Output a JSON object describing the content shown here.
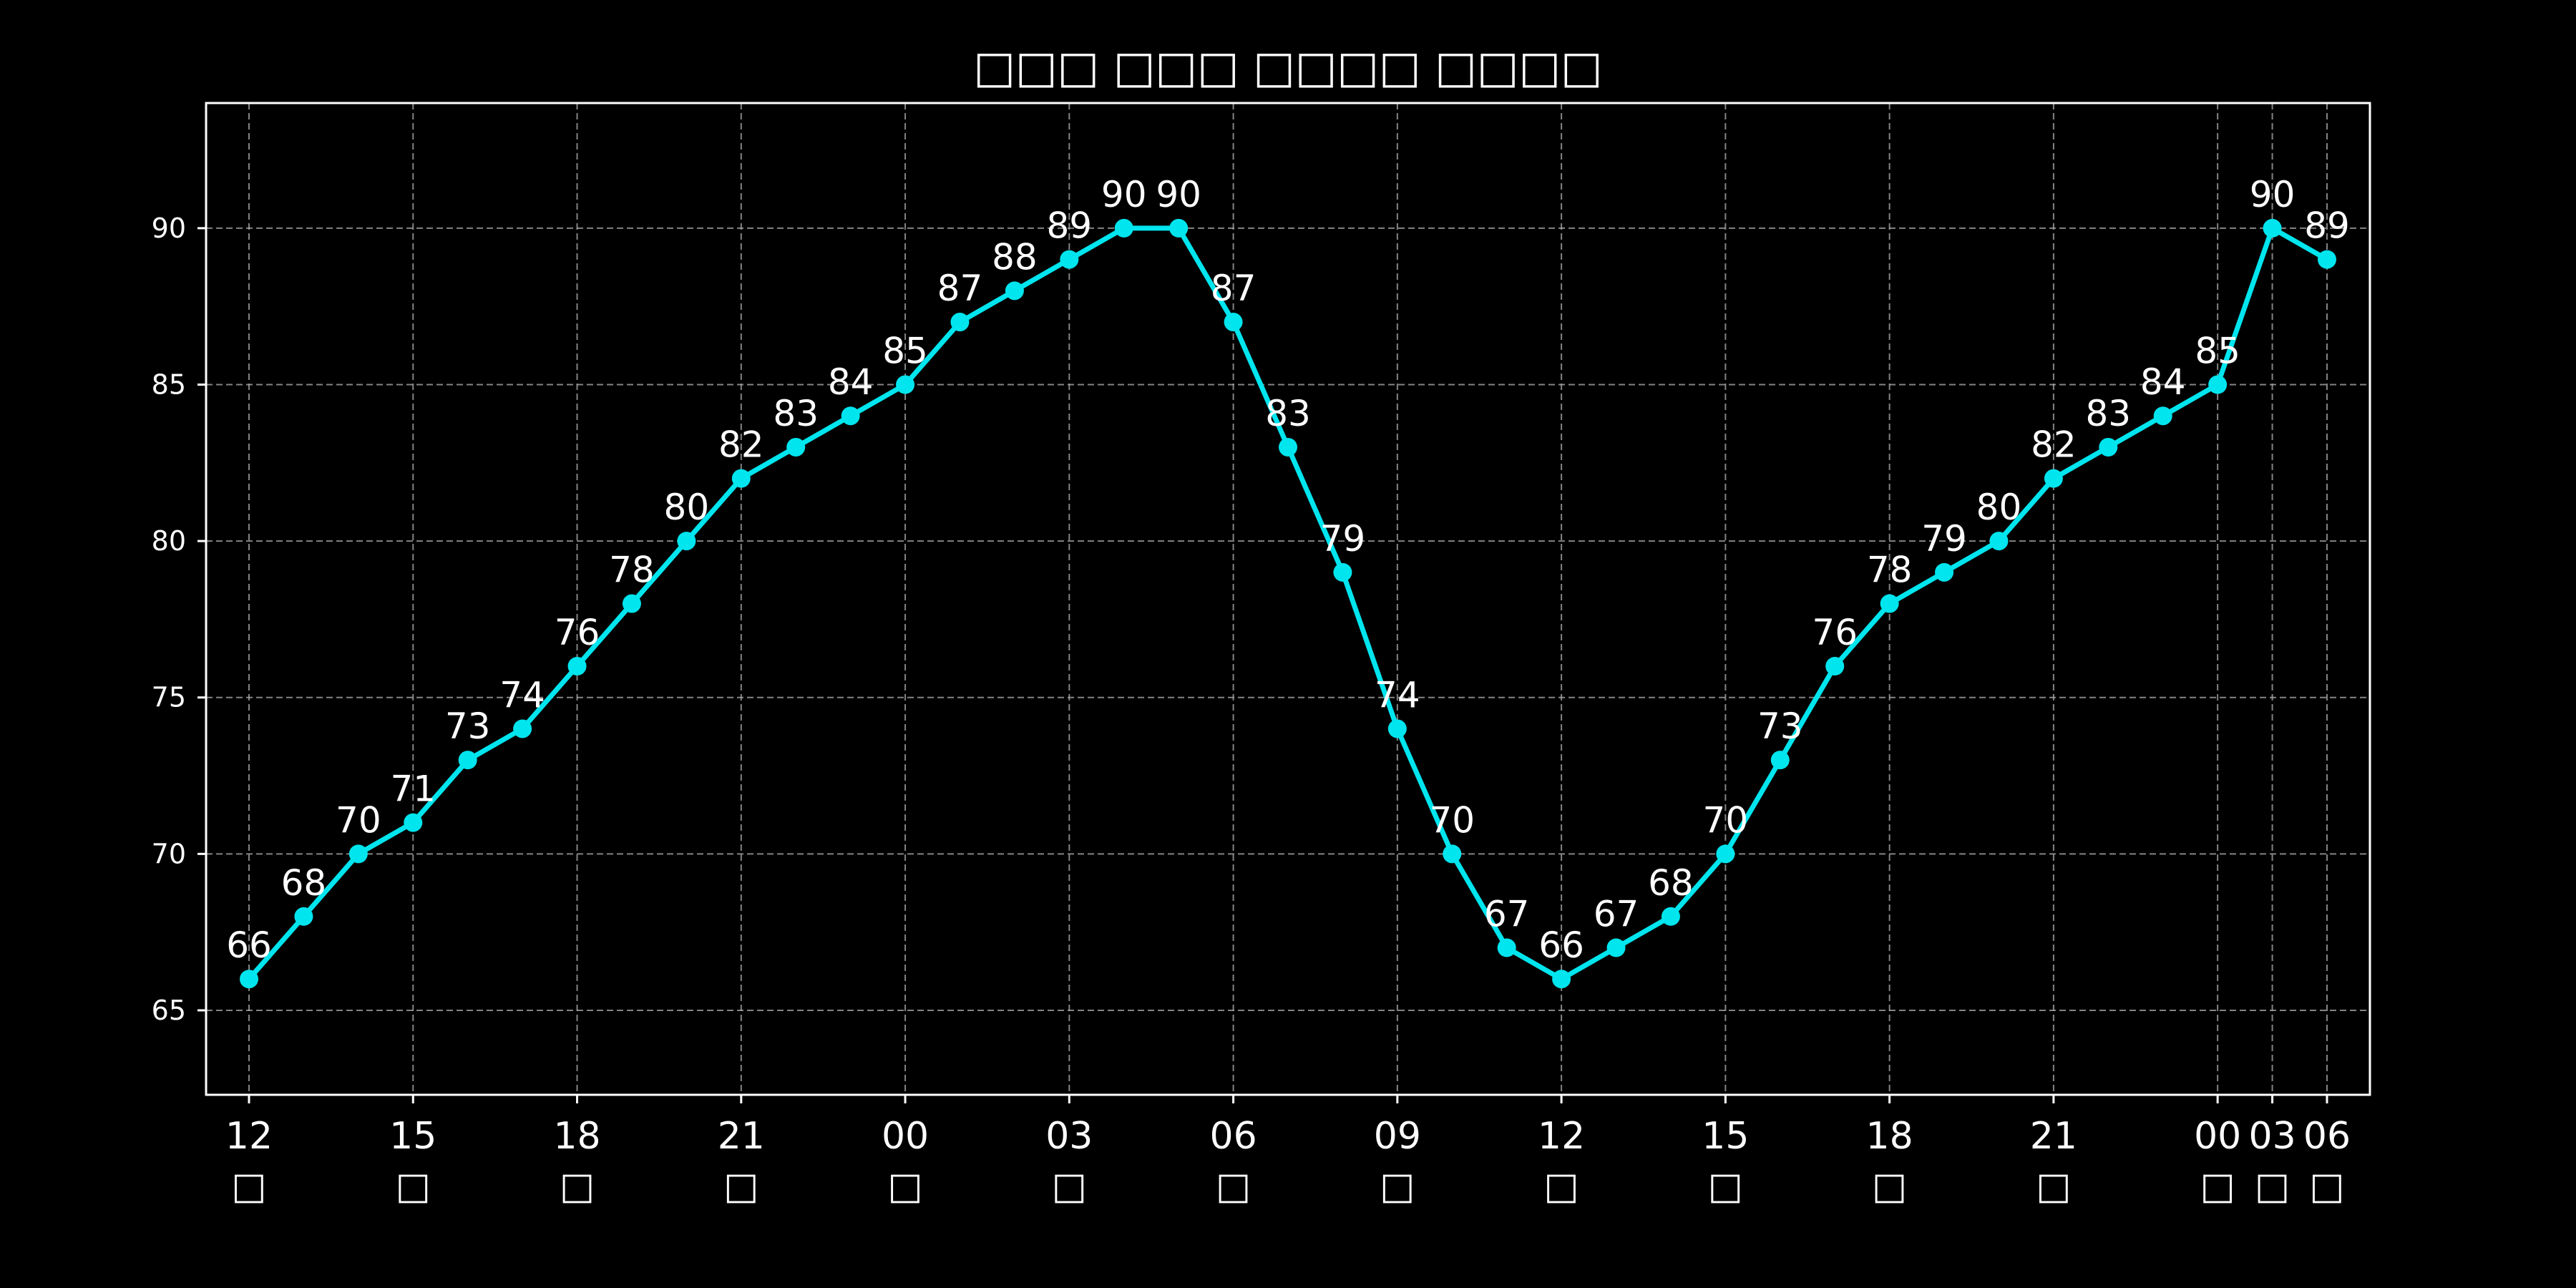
{
  "chart_data": {
    "type": "line",
    "title": "□□□ □□□ □□□□ □□□□",
    "xlabel": "",
    "ylabel": "",
    "ylim": [
      62.3,
      94.0
    ],
    "y_ticks": [
      65,
      70,
      75,
      80,
      85,
      90
    ],
    "x_ticks": [
      {
        "index": 0,
        "hour": "12",
        "day": "□"
      },
      {
        "index": 3,
        "hour": "15",
        "day": "□"
      },
      {
        "index": 6,
        "hour": "18",
        "day": "□"
      },
      {
        "index": 9,
        "hour": "21",
        "day": "□"
      },
      {
        "index": 12,
        "hour": "00",
        "day": "□"
      },
      {
        "index": 15,
        "hour": "03",
        "day": "□"
      },
      {
        "index": 18,
        "hour": "06",
        "day": "□"
      },
      {
        "index": 21,
        "hour": "09",
        "day": "□"
      },
      {
        "index": 24,
        "hour": "12",
        "day": "□"
      },
      {
        "index": 27,
        "hour": "15",
        "day": "□"
      },
      {
        "index": 30,
        "hour": "18",
        "day": "□"
      },
      {
        "index": 33,
        "hour": "21",
        "day": "□"
      },
      {
        "index": 36,
        "hour": "00",
        "day": "□"
      },
      {
        "index": 37,
        "hour": "03",
        "day": "□"
      },
      {
        "index": 38,
        "hour": "06",
        "day": "□"
      }
    ],
    "grid": true,
    "line_color": "#00e5ee",
    "series": [
      {
        "values": [
          66,
          68,
          70,
          71,
          73,
          74,
          76,
          78,
          80,
          82,
          83,
          84,
          85,
          87,
          88,
          89,
          90,
          90,
          87,
          83,
          79,
          74,
          70,
          67,
          66,
          67,
          68,
          70,
          73,
          76,
          78,
          79,
          80,
          82,
          83,
          84,
          85,
          90,
          89
        ],
        "labels": [
          "66",
          "68",
          "70",
          "71",
          "73",
          "74",
          "76",
          "78",
          "80",
          "82",
          "83",
          "84",
          "85",
          "87",
          "88",
          "89",
          "90",
          "90",
          "87",
          "83",
          "79",
          "74",
          "70",
          "67",
          "66",
          "67",
          "68",
          "70",
          "73",
          "76",
          "78",
          "79",
          "80",
          "82",
          "83",
          "84",
          "85",
          "90",
          "89"
        ]
      }
    ]
  }
}
